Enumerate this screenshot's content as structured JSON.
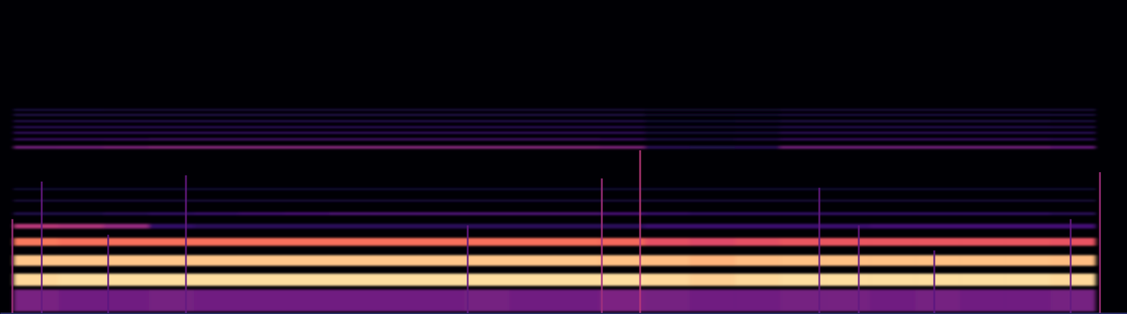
{
  "chart_data": {
    "type": "heatmap",
    "tick_labels": false,
    "grid": false,
    "xlim": [
      0,
      100
    ],
    "ylim": [
      0,
      100
    ],
    "zlim": [
      0,
      1
    ],
    "x_edges": [
      1.2,
      5.2,
      9.2,
      13.2,
      17.2,
      21.2,
      25.2,
      29.2,
      33.2,
      37.2,
      41.2,
      45.2,
      49.2,
      53.2,
      57.2,
      61.2,
      65.2,
      69.2,
      73.2,
      77.2,
      81.2,
      85.2,
      89.2,
      93.2,
      97.2
    ],
    "rows": [
      {
        "y": [
          0.5,
          7.5
        ],
        "values": [
          0.35,
          0.33,
          0.33,
          0.34,
          0.33,
          0.33,
          0.33,
          0.33,
          0.33,
          0.33,
          0.34,
          0.33,
          0.33,
          0.36,
          0.34,
          0.33,
          0.33,
          0.34,
          0.34,
          0.33,
          0.34,
          0.33,
          0.33,
          0.34
        ]
      },
      {
        "y": [
          8.7,
          12.6
        ],
        "values": [
          0.92,
          0.93,
          0.93,
          0.93,
          0.93,
          0.93,
          0.93,
          0.93,
          0.93,
          0.93,
          0.93,
          0.93,
          0.93,
          0.93,
          0.92,
          0.9,
          0.92,
          0.93,
          0.93,
          0.93,
          0.93,
          0.93,
          0.93,
          0.92
        ]
      },
      {
        "y": [
          15.1,
          18.5
        ],
        "values": [
          0.88,
          0.88,
          0.88,
          0.88,
          0.88,
          0.88,
          0.88,
          0.88,
          0.88,
          0.88,
          0.88,
          0.88,
          0.88,
          0.87,
          0.86,
          0.84,
          0.86,
          0.87,
          0.87,
          0.87,
          0.87,
          0.87,
          0.87,
          0.86
        ]
      },
      {
        "y": [
          21.5,
          24.0
        ],
        "values": [
          0.72,
          0.7,
          0.7,
          0.7,
          0.7,
          0.7,
          0.7,
          0.7,
          0.7,
          0.7,
          0.7,
          0.7,
          0.7,
          0.68,
          0.62,
          0.6,
          0.62,
          0.64,
          0.64,
          0.64,
          0.64,
          0.64,
          0.64,
          0.63
        ]
      },
      {
        "y": [
          27.0,
          28.5
        ],
        "values": [
          0.5,
          0.48,
          0.42,
          0.18,
          0.16,
          0.16,
          0.16,
          0.16,
          0.16,
          0.16,
          0.16,
          0.16,
          0.16,
          0.16,
          0.2,
          0.2,
          0.2,
          0.2,
          0.2,
          0.22,
          0.22,
          0.22,
          0.22,
          0.22
        ]
      },
      {
        "y": [
          31.3,
          32.2
        ],
        "values": [
          0.14,
          0.14,
          0.16,
          0.18,
          0.2,
          0.22,
          0.24,
          0.25,
          0.25,
          0.25,
          0.25,
          0.25,
          0.25,
          0.24,
          0.2,
          0.18,
          0.18,
          0.18,
          0.18,
          0.18,
          0.18,
          0.18,
          0.18,
          0.16
        ]
      },
      {
        "y": [
          35.6,
          36.2
        ],
        "values": [
          0.12,
          0.12,
          0.12,
          0.12,
          0.12,
          0.12,
          0.12,
          0.12,
          0.12,
          0.12,
          0.12,
          0.12,
          0.12,
          0.12,
          0.12,
          0.12,
          0.12,
          0.12,
          0.12,
          0.12,
          0.12,
          0.12,
          0.12,
          0.12
        ]
      },
      {
        "y": [
          39.3,
          39.9
        ],
        "values": [
          0.11,
          0.11,
          0.11,
          0.11,
          0.11,
          0.11,
          0.11,
          0.11,
          0.11,
          0.11,
          0.11,
          0.11,
          0.11,
          0.11,
          0.11,
          0.11,
          0.11,
          0.11,
          0.11,
          0.11,
          0.11,
          0.11,
          0.11,
          0.11
        ]
      },
      {
        "y": [
          52.5,
          53.4
        ],
        "values": [
          0.35,
          0.36,
          0.38,
          0.4,
          0.4,
          0.4,
          0.4,
          0.4,
          0.4,
          0.4,
          0.4,
          0.4,
          0.4,
          0.38,
          0.16,
          0.15,
          0.16,
          0.35,
          0.35,
          0.35,
          0.35,
          0.35,
          0.35,
          0.32
        ]
      },
      {
        "y": [
          55.2,
          55.8
        ],
        "values": [
          0.22,
          0.22,
          0.24,
          0.25,
          0.25,
          0.25,
          0.25,
          0.25,
          0.25,
          0.25,
          0.25,
          0.25,
          0.25,
          0.24,
          0.14,
          0.14,
          0.16,
          0.22,
          0.22,
          0.22,
          0.22,
          0.22,
          0.22,
          0.2
        ]
      },
      {
        "y": [
          57.3,
          57.9
        ],
        "values": [
          0.2,
          0.2,
          0.2,
          0.2,
          0.2,
          0.2,
          0.2,
          0.2,
          0.2,
          0.2,
          0.2,
          0.2,
          0.2,
          0.2,
          0.13,
          0.13,
          0.14,
          0.19,
          0.19,
          0.19,
          0.19,
          0.19,
          0.19,
          0.18
        ]
      },
      {
        "y": [
          59.1,
          59.7
        ],
        "values": [
          0.18,
          0.18,
          0.18,
          0.18,
          0.18,
          0.18,
          0.18,
          0.18,
          0.18,
          0.18,
          0.18,
          0.18,
          0.18,
          0.18,
          0.12,
          0.12,
          0.13,
          0.17,
          0.17,
          0.17,
          0.17,
          0.17,
          0.17,
          0.16
        ]
      },
      {
        "y": [
          61.0,
          61.6
        ],
        "values": [
          0.16,
          0.16,
          0.16,
          0.16,
          0.16,
          0.16,
          0.16,
          0.16,
          0.16,
          0.16,
          0.16,
          0.16,
          0.16,
          0.16,
          0.11,
          0.11,
          0.12,
          0.15,
          0.15,
          0.15,
          0.15,
          0.15,
          0.15,
          0.14
        ]
      },
      {
        "y": [
          63.0,
          63.6
        ],
        "values": [
          0.15,
          0.15,
          0.15,
          0.15,
          0.15,
          0.15,
          0.15,
          0.15,
          0.15,
          0.15,
          0.15,
          0.15,
          0.15,
          0.15,
          0.1,
          0.1,
          0.11,
          0.14,
          0.14,
          0.14,
          0.14,
          0.14,
          0.14,
          0.13
        ]
      },
      {
        "y": [
          64.6,
          65.2
        ],
        "values": [
          0.13,
          0.13,
          0.12,
          0.12,
          0.12,
          0.12,
          0.12,
          0.12,
          0.12,
          0.12,
          0.12,
          0.12,
          0.12,
          0.12,
          0.1,
          0.1,
          0.1,
          0.12,
          0.12,
          0.12,
          0.12,
          0.12,
          0.12,
          0.12
        ]
      }
    ],
    "events": [
      {
        "x": 1.1,
        "y": [
          0,
          30
        ],
        "value": 0.45
      },
      {
        "x": 3.7,
        "y": [
          0,
          42
        ],
        "value": 0.3
      },
      {
        "x": 9.6,
        "y": [
          0,
          25
        ],
        "value": 0.28
      },
      {
        "x": 16.5,
        "y": [
          0,
          44
        ],
        "value": 0.3
      },
      {
        "x": 41.5,
        "y": [
          0,
          28
        ],
        "value": 0.3
      },
      {
        "x": 53.4,
        "y": [
          0,
          43
        ],
        "value": 0.45
      },
      {
        "x": 56.8,
        "y": [
          0,
          52
        ],
        "value": 0.5
      },
      {
        "x": 72.7,
        "y": [
          0,
          40
        ],
        "value": 0.3
      },
      {
        "x": 76.2,
        "y": [
          0,
          28
        ],
        "value": 0.3
      },
      {
        "x": 82.9,
        "y": [
          0,
          20
        ],
        "value": 0.28
      },
      {
        "x": 95.0,
        "y": [
          0,
          30
        ],
        "value": 0.3
      },
      {
        "x": 97.6,
        "y": [
          0,
          45
        ],
        "value": 0.45
      }
    ]
  }
}
